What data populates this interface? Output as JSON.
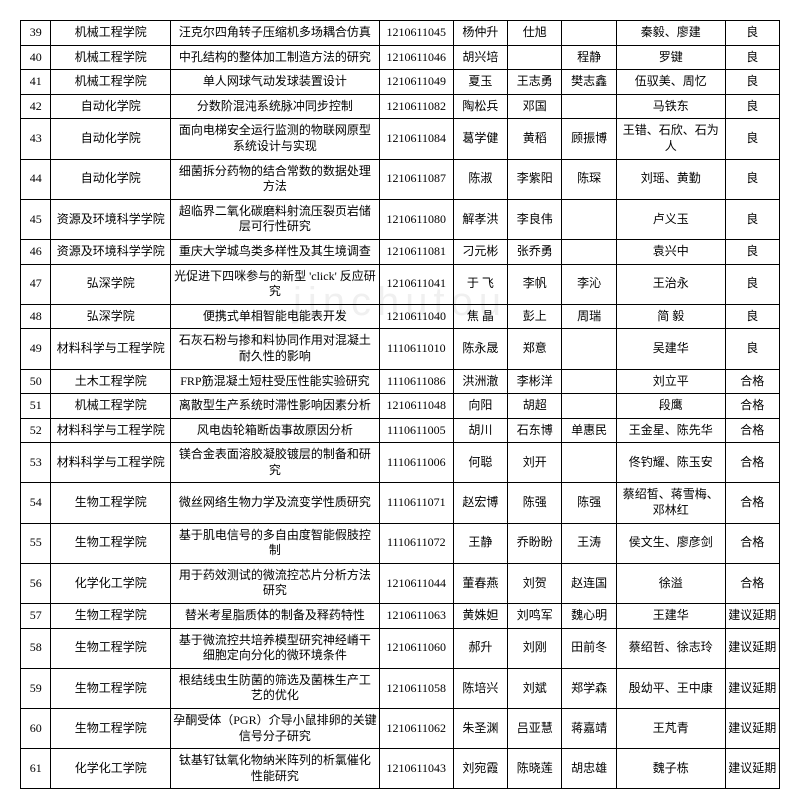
{
  "rows": [
    {
      "n": "39",
      "dept": "机械工程学院",
      "title": "汪克尔四角转子压缩机多场耦合仿真",
      "id": "1210611045",
      "a": "杨仲升",
      "b": "仕旭",
      "c": "",
      "d": "秦毅、廖建",
      "r": "良"
    },
    {
      "n": "40",
      "dept": "机械工程学院",
      "title": "中孔结构的整体加工制造方法的研究",
      "id": "1210611046",
      "a": "胡兴培",
      "b": "",
      "c": "程静",
      "d": "罗键",
      "r": "良"
    },
    {
      "n": "41",
      "dept": "机械工程学院",
      "title": "单人网球气动发球装置设计",
      "id": "1210611049",
      "a": "夏玉",
      "b": "王志勇",
      "c": "樊志鑫",
      "d": "伍驭美、周忆",
      "r": "良"
    },
    {
      "n": "42",
      "dept": "自动化学院",
      "title": "分数阶混沌系统脉冲同步控制",
      "id": "1210611082",
      "a": "陶松兵",
      "b": "邓国",
      "c": "",
      "d": "马铁东",
      "r": "良"
    },
    {
      "n": "43",
      "dept": "自动化学院",
      "title": "面向电梯安全运行监测的物联网原型系统设计与实现",
      "id": "1210611084",
      "a": "葛学健",
      "b": "黄稻",
      "c": "顾振博",
      "d": "王错、石欣、石为人",
      "r": "良"
    },
    {
      "n": "44",
      "dept": "自动化学院",
      "title": "细菌拆分药物的结合常数的数据处理方法",
      "id": "1210611087",
      "a": "陈淑",
      "b": "李紫阳",
      "c": "陈琛",
      "d": "刘瑶、黄勤",
      "r": "良"
    },
    {
      "n": "45",
      "dept": "资源及环境科学学院",
      "title": "超临界二氧化碳磨料射流压裂页岩储层可行性研究",
      "id": "1210611080",
      "a": "解孝洪",
      "b": "李良伟",
      "c": "",
      "d": "卢义玉",
      "r": "良"
    },
    {
      "n": "46",
      "dept": "资源及环境科学学院",
      "title": "重庆大学城鸟类多样性及其生境调查",
      "id": "1210611081",
      "a": "刁元彬",
      "b": "张乔勇",
      "c": "",
      "d": "袁兴中",
      "r": "良"
    },
    {
      "n": "47",
      "dept": "弘深学院",
      "title": "光促进下四咪参与的新型 'click' 反应研究",
      "id": "1210611041",
      "a": "于   飞",
      "b": "李帆",
      "c": "李沁",
      "d": "王治永",
      "r": "良"
    },
    {
      "n": "48",
      "dept": "弘深学院",
      "title": "便携式单相智能电能表开发",
      "id": "1210611040",
      "a": "焦   晶",
      "b": "彭上",
      "c": "周瑞",
      "d": "简   毅",
      "r": "良"
    },
    {
      "n": "49",
      "dept": "材料科学与工程学院",
      "title": "石灰石粉与掺和料协同作用对混凝土耐久性的影响",
      "id": "1110611010",
      "a": "陈永晟",
      "b": "郑意",
      "c": "",
      "d": "吴建华",
      "r": "良"
    },
    {
      "n": "50",
      "dept": "土木工程学院",
      "title": "FRP筋混凝土短柱受压性能实验研究",
      "id": "1110611086",
      "a": "洪洲澈",
      "b": "李彬洋",
      "c": "",
      "d": "刘立平",
      "r": "合格"
    },
    {
      "n": "51",
      "dept": "机械工程学院",
      "title": "离散型生产系统时滞性影响因素分析",
      "id": "1210611048",
      "a": "向阳",
      "b": "胡超",
      "c": "",
      "d": "段鹰",
      "r": "合格"
    },
    {
      "n": "52",
      "dept": "材料科学与工程学院",
      "title": "风电齿轮箱断齿事故原因分析",
      "id": "1110611005",
      "a": "胡川",
      "b": "石东博",
      "c": "单惠民",
      "d": "王金星、陈先华",
      "r": "合格"
    },
    {
      "n": "53",
      "dept": "材料科学与工程学院",
      "title": "镁合金表面溶胶凝胶镀层的制备和研究",
      "id": "1110611006",
      "a": "何聪",
      "b": "刘开",
      "c": "",
      "d": "佟钓耀、陈玉安",
      "r": "合格"
    },
    {
      "n": "54",
      "dept": "生物工程学院",
      "title": "微丝网络生物力学及流变学性质研究",
      "id": "1110611071",
      "a": "赵宏博",
      "b": "陈强",
      "c": "陈强",
      "d": "蔡绍皙、蒋雪梅、邓林红",
      "r": "合格"
    },
    {
      "n": "55",
      "dept": "生物工程学院",
      "title": "基于肌电信号的多自由度智能假肢控制",
      "id": "1110611072",
      "a": "王静",
      "b": "乔盼盼",
      "c": "王涛",
      "d": "侯文生、廖彦剑",
      "r": "合格"
    },
    {
      "n": "56",
      "dept": "化学化工学院",
      "title": "用于药效测试的微流控芯片分析方法研究",
      "id": "1210611044",
      "a": "董春燕",
      "b": "刘贺",
      "c": "赵连国",
      "d": "徐溢",
      "r": "合格"
    },
    {
      "n": "57",
      "dept": "生物工程学院",
      "title": "替米考星脂质体的制备及释药特性",
      "id": "1210611063",
      "a": "黄姝妲",
      "b": "刘鸣军",
      "c": "魏心明",
      "d": "王建华",
      "r": "建议延期"
    },
    {
      "n": "58",
      "dept": "生物工程学院",
      "title": "基于微流控共培养模型研究神经嵴干细胞定向分化的微环境条件",
      "id": "1210611060",
      "a": "郝升",
      "b": "刘刚",
      "c": "田前冬",
      "d": "蔡绍哲、徐志玲",
      "r": "建议延期"
    },
    {
      "n": "59",
      "dept": "生物工程学院",
      "title": "根结线虫生防菌的筛选及菌株生产工艺的优化",
      "id": "1210611058",
      "a": "陈培兴",
      "b": "刘斌",
      "c": "郑学森",
      "d": "殷幼平、王中康",
      "r": "建议延期"
    },
    {
      "n": "60",
      "dept": "生物工程学院",
      "title": "孕酮受体（PGR）介导小鼠排卵的关键信号分子研究",
      "id": "1210611062",
      "a": "朱圣渊",
      "b": "吕亚慧",
      "c": "蒋嘉靖",
      "d": "王芃青",
      "r": "建议延期"
    },
    {
      "n": "61",
      "dept": "化学化工学院",
      "title": "钛基钌钛氧化物纳米阵列的析氯催化性能研究",
      "id": "1210611043",
      "a": "刘宛霞",
      "b": "陈晓莲",
      "c": "胡忠雄",
      "d": "魏子栋",
      "r": "建议延期"
    }
  ]
}
